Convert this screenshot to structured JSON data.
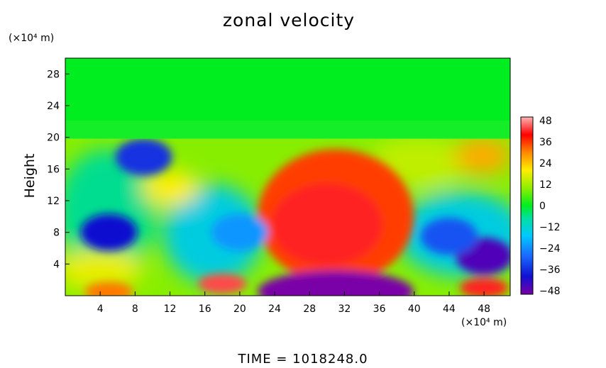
{
  "chart_data": {
    "type": "heatmap",
    "title": "zonal velocity",
    "xlabel": "",
    "ylabel": "Height",
    "x_unit": "(×10⁴ m)",
    "y_unit": "(×10⁴ m)",
    "xlim": [
      0,
      51
    ],
    "ylim": [
      0,
      30
    ],
    "x_ticks": [
      4,
      8,
      12,
      16,
      20,
      24,
      28,
      32,
      36,
      40,
      44,
      48
    ],
    "y_ticks": [
      4,
      8,
      12,
      16,
      20,
      24,
      28
    ],
    "colorbar": {
      "range": [
        -48,
        48
      ],
      "ticks": [
        "48",
        "36",
        "24",
        "12",
        "0",
        "−12",
        "−24",
        "−36",
        "−48"
      ]
    },
    "time_label": "TIME = 1018248.0",
    "regions": [
      {
        "kind": "upper_layer",
        "y_range": [
          20,
          30
        ],
        "value": 4
      },
      {
        "kind": "jet_core",
        "x": 30,
        "y": 9,
        "value": 48
      },
      {
        "kind": "jet_halo",
        "x": 31,
        "y": 10,
        "value": 34
      },
      {
        "kind": "surface_minimum",
        "x": 31,
        "y": 0.5,
        "value": -48
      },
      {
        "kind": "negative_cell",
        "x": 48,
        "y": 5,
        "value": -44
      },
      {
        "kind": "negative_cell",
        "x": 44,
        "y": 7.5,
        "value": -30
      },
      {
        "kind": "negative_cell",
        "x": 9,
        "y": 17.5,
        "value": -34
      },
      {
        "kind": "negative_cell",
        "x": 20,
        "y": 8,
        "value": -22
      },
      {
        "kind": "negative_cell",
        "x": 5,
        "y": 8,
        "value": -38
      },
      {
        "kind": "positive_cell",
        "x": 18,
        "y": 1.5,
        "value": 42
      },
      {
        "kind": "positive_cell",
        "x": 48,
        "y": 1,
        "value": 40
      },
      {
        "kind": "positive_cell",
        "x": 5,
        "y": 0.5,
        "value": 30
      }
    ]
  }
}
